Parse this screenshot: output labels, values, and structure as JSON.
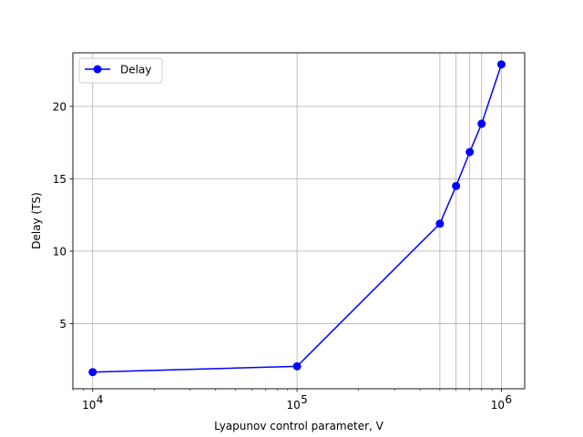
{
  "chart_data": {
    "type": "line",
    "xscale": "log",
    "xlim": [
      8000,
      1300000
    ],
    "ylim": [
      0.5,
      23.7
    ],
    "grid": true,
    "legend_position": "top-left",
    "xlabel": "Lyapunov control parameter, V",
    "ylabel": "Delay (TS)",
    "x_ticks": [
      {
        "value": 10000,
        "base": "10",
        "exp": "4"
      },
      {
        "value": 100000,
        "base": "10",
        "exp": "5"
      },
      {
        "value": 1000000,
        "base": "10",
        "exp": "6"
      }
    ],
    "y_ticks": [
      {
        "value": 5,
        "label": "5"
      },
      {
        "value": 10,
        "label": "10"
      },
      {
        "value": 15,
        "label": "15"
      },
      {
        "value": 20,
        "label": "20"
      }
    ],
    "series": [
      {
        "name": "Delay",
        "color": "#0000ff",
        "marker": "circle",
        "x": [
          10000,
          100000,
          500000,
          600000,
          700000,
          800000,
          1000000
        ],
        "y": [
          1.65,
          2.05,
          11.9,
          14.5,
          16.85,
          18.8,
          22.9
        ]
      }
    ]
  }
}
